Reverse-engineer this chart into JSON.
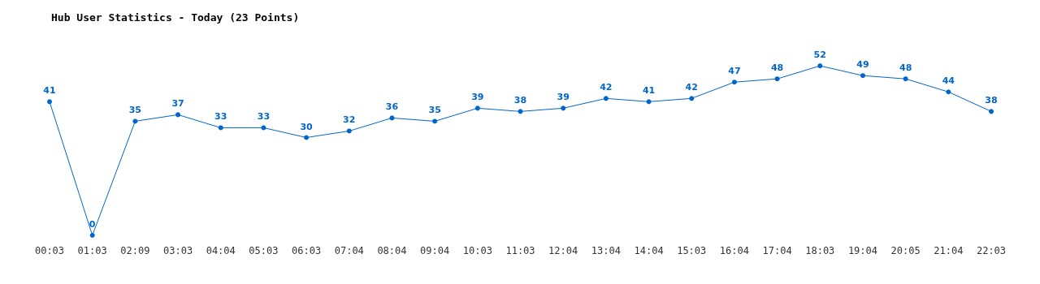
{
  "chart_data": {
    "type": "line",
    "title": "Hub User Statistics - Today (23 Points)",
    "categories": [
      "00:03",
      "01:03",
      "02:09",
      "03:03",
      "04:04",
      "05:03",
      "06:03",
      "07:04",
      "08:04",
      "09:04",
      "10:03",
      "11:03",
      "12:04",
      "13:04",
      "14:04",
      "15:03",
      "16:04",
      "17:04",
      "18:03",
      "19:04",
      "20:05",
      "21:04",
      "22:03"
    ],
    "series": [
      {
        "color": "#0066cc",
        "values": [
          41,
          0,
          35,
          37,
          33,
          33,
          30,
          32,
          36,
          35,
          39,
          38,
          39,
          42,
          41,
          42,
          47,
          48,
          52,
          49,
          48,
          44,
          38
        ]
      }
    ],
    "data_labels": true,
    "marker": "circle",
    "grid": false,
    "tick_labels": "x"
  }
}
